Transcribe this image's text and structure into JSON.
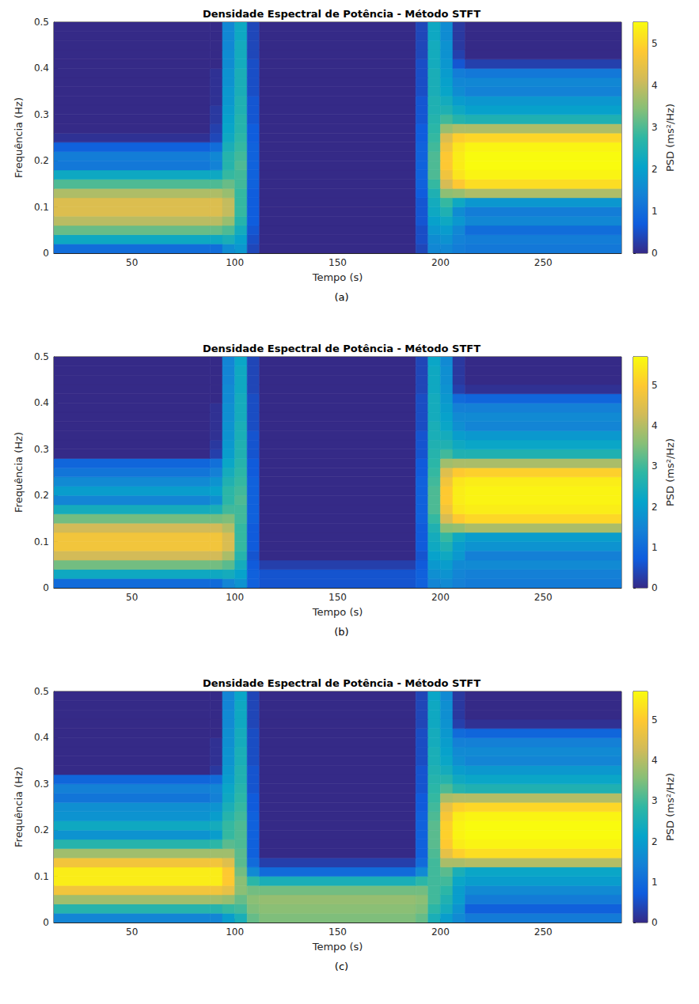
{
  "chart_data": [
    {
      "type": "heatmap",
      "title": "Densidade Espectral de Potência - Método STFT",
      "caption": "(a)",
      "x_label": "Tempo (s)",
      "y_label": "Frequência (Hz)",
      "xlim": [
        12,
        288
      ],
      "xticks": [
        50,
        100,
        150,
        200,
        250
      ],
      "ylim": [
        0,
        0.5
      ],
      "yticks": [
        0,
        0.1,
        0.2,
        0.3,
        0.4,
        0.5
      ],
      "grid": false,
      "time_edges": [
        12,
        88,
        94,
        100,
        106,
        112,
        188,
        194,
        200,
        206,
        212,
        288
      ],
      "freq_edges": [
        0,
        0.02,
        0.04,
        0.06,
        0.08,
        0.1,
        0.12,
        0.14,
        0.16,
        0.18,
        0.2,
        0.22,
        0.24,
        0.26,
        0.28,
        0.3,
        0.32,
        0.34,
        0.36,
        0.38,
        0.4,
        0.42,
        0.44,
        0.46,
        0.48,
        0.5
      ],
      "psd": [
        [
          1.0,
          1.0,
          1.6,
          1.8,
          0.4,
          0,
          0.4,
          1.5,
          1.5,
          1.3,
          1.2
        ],
        [
          2.2,
          2.2,
          2.4,
          2.0,
          0.5,
          0,
          0.5,
          1.6,
          1.7,
          1.4,
          1.3
        ],
        [
          3.2,
          3.2,
          3.0,
          2.3,
          0.6,
          0,
          0.5,
          1.8,
          1.9,
          1.5,
          1.0
        ],
        [
          3.9,
          3.9,
          3.6,
          2.6,
          0.7,
          0,
          0.6,
          2.0,
          2.2,
          1.8,
          1.5
        ],
        [
          4.3,
          4.3,
          4.0,
          2.8,
          0.7,
          0,
          0.6,
          2.2,
          2.5,
          1.6,
          1.3
        ],
        [
          4.3,
          4.3,
          4.0,
          2.8,
          0.7,
          0,
          0.6,
          2.3,
          2.8,
          2.2,
          1.8
        ],
        [
          3.8,
          3.8,
          3.6,
          2.8,
          0.7,
          0,
          0.7,
          2.5,
          3.5,
          3.6,
          3.8
        ],
        [
          3.0,
          3.0,
          3.2,
          2.9,
          0.8,
          0,
          0.8,
          2.8,
          4.2,
          4.8,
          5.1
        ],
        [
          2.2,
          2.2,
          2.8,
          2.9,
          0.8,
          0,
          0.8,
          3.0,
          4.6,
          5.2,
          5.4
        ],
        [
          1.2,
          1.4,
          2.6,
          3.0,
          0.8,
          0,
          0.8,
          3.0,
          4.8,
          5.3,
          5.5
        ],
        [
          1.3,
          1.5,
          2.6,
          2.9,
          0.8,
          0,
          0.8,
          3.0,
          4.8,
          5.3,
          5.5
        ],
        [
          0.8,
          1.0,
          2.4,
          2.8,
          0.8,
          0,
          0.8,
          2.9,
          4.6,
          5.2,
          5.4
        ],
        [
          0.1,
          0.4,
          2.2,
          2.7,
          0.7,
          0,
          0.7,
          2.8,
          4.3,
          4.9,
          5.0
        ],
        [
          0,
          0.3,
          2.1,
          2.6,
          0.7,
          0,
          0.7,
          2.7,
          3.6,
          3.8,
          3.8
        ],
        [
          0,
          0.2,
          2.0,
          2.6,
          0.6,
          0,
          0.6,
          2.6,
          2.9,
          2.6,
          2.5
        ],
        [
          0,
          0.2,
          1.9,
          2.5,
          0.6,
          0,
          0.6,
          2.5,
          2.5,
          2.2,
          2.0
        ],
        [
          0,
          0.1,
          1.8,
          2.5,
          0.6,
          0,
          0.6,
          2.5,
          2.3,
          1.9,
          1.8
        ],
        [
          0,
          0.1,
          1.8,
          2.4,
          0.5,
          0,
          0.5,
          2.4,
          2.1,
          1.6,
          1.4
        ],
        [
          0,
          0.1,
          1.7,
          2.4,
          0.5,
          0,
          0.5,
          2.4,
          2.0,
          1.5,
          1.5
        ],
        [
          0,
          0.1,
          1.7,
          2.4,
          0.5,
          0,
          0.5,
          2.4,
          1.9,
          1.3,
          1.2
        ],
        [
          0,
          0,
          1.6,
          2.3,
          0.5,
          0,
          0.5,
          2.3,
          1.8,
          0.6,
          0.3
        ],
        [
          0,
          0,
          1.6,
          2.3,
          0.4,
          0,
          0.4,
          2.3,
          1.7,
          0.3,
          0
        ],
        [
          0,
          0,
          1.5,
          2.3,
          0.4,
          0,
          0.4,
          2.3,
          1.7,
          0.2,
          0
        ],
        [
          0,
          0,
          1.5,
          2.2,
          0.4,
          0,
          0.4,
          2.2,
          1.6,
          0.2,
          0
        ],
        [
          0,
          0,
          1.5,
          2.2,
          0.4,
          0,
          0.4,
          2.2,
          1.6,
          0.2,
          0
        ]
      ],
      "colorbar": {
        "label": "PSD (ms²/Hz)",
        "range": [
          0,
          5.5
        ],
        "ticks": [
          0,
          1,
          2,
          3,
          4,
          5
        ]
      }
    },
    {
      "type": "heatmap",
      "title": "Densidade Espectral de Potência - Método STFT",
      "caption": "(b)",
      "x_label": "Tempo (s)",
      "y_label": "Frequência (Hz)",
      "xlim": [
        12,
        288
      ],
      "xticks": [
        50,
        100,
        150,
        200,
        250
      ],
      "ylim": [
        0,
        0.5
      ],
      "yticks": [
        0,
        0.1,
        0.2,
        0.3,
        0.4,
        0.5
      ],
      "grid": false,
      "time_edges": [
        12,
        88,
        94,
        100,
        106,
        112,
        188,
        194,
        200,
        206,
        212,
        288
      ],
      "freq_edges": [
        0,
        0.02,
        0.04,
        0.06,
        0.08,
        0.1,
        0.12,
        0.14,
        0.16,
        0.18,
        0.2,
        0.22,
        0.24,
        0.26,
        0.28,
        0.3,
        0.32,
        0.34,
        0.36,
        0.38,
        0.4,
        0.42,
        0.44,
        0.46,
        0.48,
        0.5
      ],
      "psd": [
        [
          1.0,
          1.0,
          1.5,
          1.8,
          0.8,
          0.6,
          0.8,
          1.5,
          1.6,
          1.4,
          1.3
        ],
        [
          2.3,
          2.3,
          2.4,
          2.1,
          0.8,
          0.6,
          0.8,
          1.7,
          1.8,
          1.5,
          1.4
        ],
        [
          3.4,
          3.4,
          3.2,
          2.4,
          0.7,
          0.3,
          0.7,
          1.9,
          2.0,
          1.6,
          1.6
        ],
        [
          4.3,
          4.3,
          3.9,
          2.7,
          0.6,
          0,
          0.6,
          2.1,
          2.3,
          1.9,
          1.4
        ],
        [
          4.8,
          4.8,
          4.4,
          2.9,
          0.7,
          0,
          0.7,
          2.3,
          2.6,
          2.0,
          1.8
        ],
        [
          4.8,
          4.8,
          4.4,
          2.9,
          0.7,
          0,
          0.7,
          2.4,
          2.9,
          2.3,
          2.0
        ],
        [
          4.3,
          4.3,
          4.0,
          2.9,
          0.7,
          0,
          0.7,
          2.6,
          3.6,
          3.7,
          3.9
        ],
        [
          3.4,
          3.4,
          3.5,
          3.0,
          0.8,
          0,
          0.8,
          2.9,
          4.4,
          5.0,
          5.2
        ],
        [
          2.4,
          2.5,
          3.0,
          3.0,
          0.8,
          0,
          0.8,
          3.1,
          4.8,
          5.4,
          5.5
        ],
        [
          1.5,
          1.7,
          2.8,
          3.1,
          0.8,
          0,
          0.8,
          3.1,
          5.0,
          5.5,
          5.6
        ],
        [
          2.0,
          2.1,
          2.8,
          3.0,
          0.8,
          0,
          0.8,
          3.1,
          5.0,
          5.5,
          5.6
        ],
        [
          1.6,
          1.8,
          2.6,
          2.9,
          0.8,
          0,
          0.8,
          3.0,
          4.8,
          5.4,
          5.5
        ],
        [
          1.2,
          1.4,
          2.4,
          2.8,
          0.7,
          0,
          0.7,
          2.9,
          4.5,
          5.0,
          5.1
        ],
        [
          0.9,
          1.1,
          2.2,
          2.7,
          0.7,
          0,
          0.7,
          2.8,
          3.8,
          3.9,
          3.9
        ],
        [
          0,
          0.3,
          2.0,
          2.6,
          0.6,
          0,
          0.6,
          2.7,
          3.0,
          2.6,
          2.6
        ],
        [
          0,
          0.2,
          1.9,
          2.6,
          0.6,
          0,
          0.6,
          2.6,
          2.6,
          2.3,
          2.2
        ],
        [
          0,
          0.1,
          1.8,
          2.5,
          0.6,
          0,
          0.6,
          2.5,
          2.4,
          2.0,
          1.9
        ],
        [
          0,
          0.1,
          1.8,
          2.5,
          0.5,
          0,
          0.5,
          2.5,
          2.2,
          1.7,
          1.5
        ],
        [
          0,
          0.1,
          1.7,
          2.4,
          0.5,
          0,
          0.5,
          2.4,
          2.1,
          1.6,
          1.6
        ],
        [
          0,
          0.1,
          1.7,
          2.4,
          0.5,
          0,
          0.5,
          2.4,
          2.0,
          1.4,
          1.4
        ],
        [
          0,
          0,
          1.6,
          2.4,
          0.5,
          0,
          0.5,
          2.4,
          1.9,
          1.0,
          0.9
        ],
        [
          0,
          0,
          1.6,
          2.3,
          0.4,
          0,
          0.4,
          2.3,
          1.8,
          0.3,
          0.1
        ],
        [
          0,
          0,
          1.5,
          2.3,
          0.4,
          0,
          0.4,
          2.3,
          1.7,
          0.2,
          0
        ],
        [
          0,
          0,
          1.5,
          2.3,
          0.4,
          0,
          0.4,
          2.3,
          1.7,
          0.2,
          0
        ],
        [
          0,
          0,
          1.5,
          2.2,
          0.4,
          0,
          0.4,
          2.2,
          1.6,
          0.2,
          0
        ]
      ],
      "colorbar": {
        "label": "PSD (ms²/Hz)",
        "range": [
          0,
          5.7
        ],
        "ticks": [
          0,
          1,
          2,
          3,
          4,
          5
        ]
      }
    },
    {
      "type": "heatmap",
      "title": "Densidade Espectral de Potência - Método STFT",
      "caption": "(c)",
      "x_label": "Tempo (s)",
      "y_label": "Frequência (Hz)",
      "xlim": [
        12,
        288
      ],
      "xticks": [
        50,
        100,
        150,
        200,
        250
      ],
      "ylim": [
        0,
        0.5
      ],
      "yticks": [
        0,
        0.1,
        0.2,
        0.3,
        0.4,
        0.5
      ],
      "grid": false,
      "time_edges": [
        12,
        88,
        94,
        100,
        106,
        112,
        188,
        194,
        200,
        206,
        212,
        288
      ],
      "freq_edges": [
        0,
        0.02,
        0.04,
        0.06,
        0.08,
        0.1,
        0.12,
        0.14,
        0.16,
        0.18,
        0.2,
        0.22,
        0.24,
        0.26,
        0.28,
        0.3,
        0.32,
        0.34,
        0.36,
        0.38,
        0.4,
        0.42,
        0.44,
        0.46,
        0.48,
        0.5
      ],
      "psd": [
        [
          1.5,
          1.5,
          2.0,
          2.5,
          3.3,
          3.5,
          3.3,
          2.5,
          2.0,
          1.6,
          1.3
        ],
        [
          2.7,
          2.7,
          2.9,
          3.0,
          3.5,
          3.6,
          3.5,
          2.8,
          2.4,
          1.8,
          0.8
        ],
        [
          3.8,
          3.8,
          3.7,
          3.3,
          3.6,
          3.7,
          3.6,
          3.0,
          2.6,
          2.0,
          1.3
        ],
        [
          4.8,
          4.8,
          4.6,
          3.6,
          3.4,
          3.4,
          3.4,
          3.0,
          2.8,
          2.0,
          1.6
        ],
        [
          5.5,
          5.5,
          5.0,
          3.6,
          2.8,
          2.5,
          2.8,
          3.0,
          3.0,
          2.2,
          2.0
        ],
        [
          5.5,
          5.5,
          5.0,
          3.4,
          1.6,
          1.0,
          1.6,
          3.0,
          3.2,
          2.5,
          2.2
        ],
        [
          4.8,
          4.8,
          4.5,
          3.2,
          1.0,
          0.3,
          1.0,
          3.0,
          3.9,
          3.9,
          4.0
        ],
        [
          3.8,
          3.8,
          3.8,
          3.2,
          0.8,
          0,
          0.8,
          3.1,
          4.6,
          5.1,
          5.3
        ],
        [
          2.7,
          2.8,
          3.2,
          3.1,
          0.8,
          0,
          0.8,
          3.2,
          5.0,
          5.5,
          5.6
        ],
        [
          1.8,
          2.0,
          2.9,
          3.1,
          0.8,
          0,
          0.8,
          3.2,
          5.1,
          5.6,
          5.7
        ],
        [
          2.3,
          2.4,
          2.9,
          3.1,
          0.8,
          0,
          0.8,
          3.2,
          5.1,
          5.6,
          5.7
        ],
        [
          1.8,
          2.0,
          2.7,
          3.0,
          0.8,
          0,
          0.8,
          3.1,
          4.9,
          5.5,
          5.6
        ],
        [
          1.7,
          1.8,
          2.5,
          2.9,
          0.7,
          0,
          0.7,
          3.0,
          4.6,
          5.1,
          5.2
        ],
        [
          1.2,
          1.4,
          2.3,
          2.8,
          0.7,
          0,
          0.7,
          2.9,
          3.9,
          4.0,
          4.0
        ],
        [
          1.4,
          1.5,
          2.2,
          2.7,
          0.6,
          0,
          0.6,
          2.8,
          3.1,
          2.7,
          2.6
        ],
        [
          0.9,
          1.0,
          2.0,
          2.6,
          0.6,
          0,
          0.6,
          2.7,
          2.7,
          2.3,
          2.2
        ],
        [
          0,
          0.2,
          1.9,
          2.6,
          0.6,
          0,
          0.6,
          2.6,
          2.4,
          2.0,
          1.9
        ],
        [
          0,
          0.1,
          1.8,
          2.5,
          0.5,
          0,
          0.5,
          2.5,
          2.2,
          1.7,
          1.5
        ],
        [
          0,
          0.1,
          1.8,
          2.5,
          0.5,
          0,
          0.5,
          2.5,
          2.1,
          1.6,
          1.6
        ],
        [
          0,
          0.1,
          1.7,
          2.4,
          0.5,
          0,
          0.5,
          2.4,
          2.0,
          1.4,
          1.4
        ],
        [
          0,
          0,
          1.7,
          2.4,
          0.5,
          0,
          0.5,
          2.4,
          1.9,
          1.0,
          0.9
        ],
        [
          0,
          0,
          1.6,
          2.3,
          0.4,
          0,
          0.4,
          2.3,
          1.8,
          0.3,
          0.1
        ],
        [
          0,
          0,
          1.6,
          2.3,
          0.4,
          0,
          0.4,
          2.3,
          1.7,
          0.2,
          0
        ],
        [
          0,
          0,
          1.5,
          2.3,
          0.4,
          0,
          0.4,
          2.3,
          1.7,
          0.2,
          0
        ],
        [
          0,
          0,
          1.5,
          2.2,
          0.4,
          0,
          0.4,
          2.2,
          1.6,
          0.2,
          0
        ]
      ],
      "colorbar": {
        "label": "PSD (ms²/Hz)",
        "range": [
          0,
          5.7
        ],
        "ticks": [
          0,
          1,
          2,
          3,
          4,
          5
        ]
      }
    }
  ]
}
